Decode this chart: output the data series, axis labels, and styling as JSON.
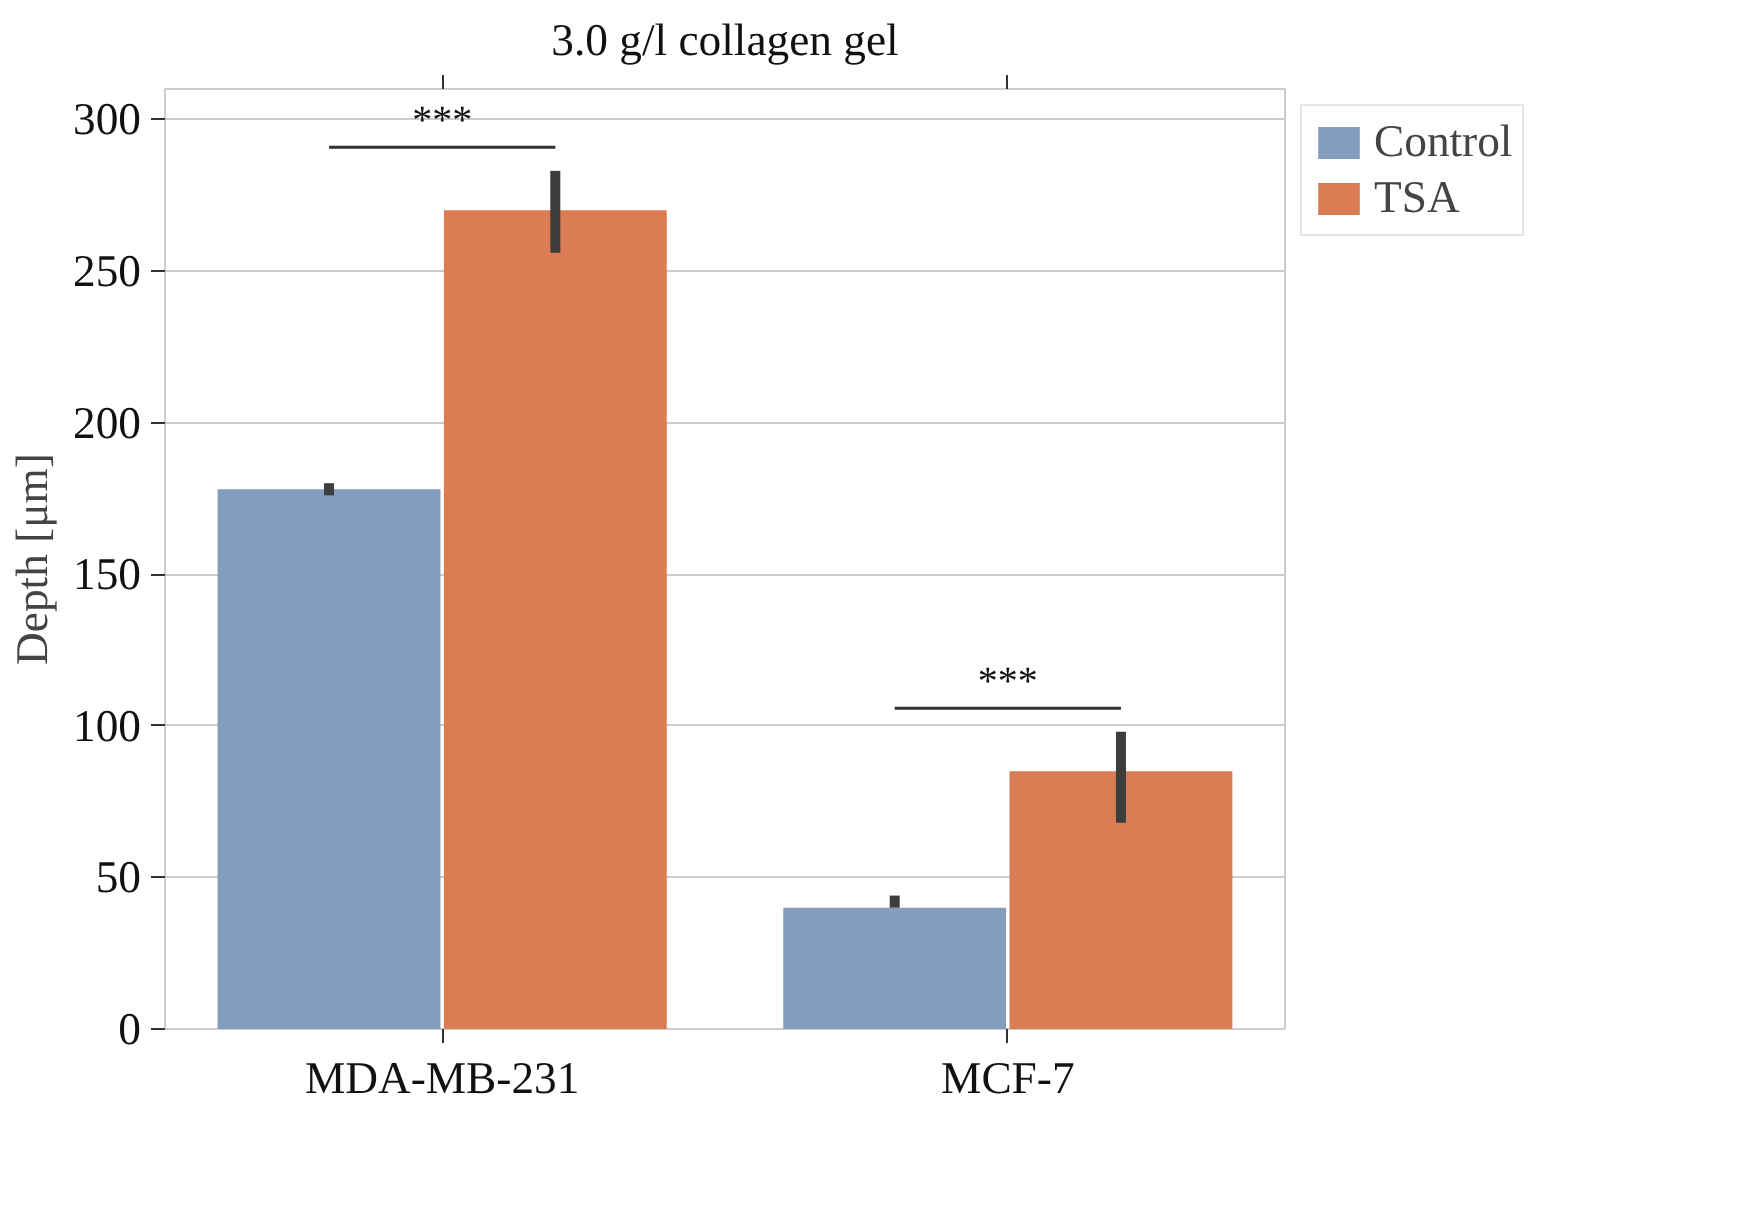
{
  "chart_data": {
    "type": "bar",
    "title": "3.0 g/l collagen gel",
    "ylabel": "Depth [μm]",
    "categories": [
      "MDA-MB-231",
      "MCF-7"
    ],
    "series": [
      {
        "name": "Control",
        "color": "#849cbd",
        "values": [
          178,
          40
        ],
        "errors": [
          [
            176,
            180
          ],
          [
            40,
            44
          ]
        ]
      },
      {
        "name": "TSA",
        "color": "#db7d54",
        "values": [
          270,
          85
        ],
        "errors": [
          [
            256,
            283
          ],
          [
            68,
            98
          ]
        ]
      }
    ],
    "annotations": [
      "***",
      "***"
    ],
    "ylim": [
      0,
      310
    ],
    "yticks": [
      0,
      50,
      100,
      150,
      200,
      250,
      300
    ],
    "grid": "y",
    "legend": "top right"
  }
}
